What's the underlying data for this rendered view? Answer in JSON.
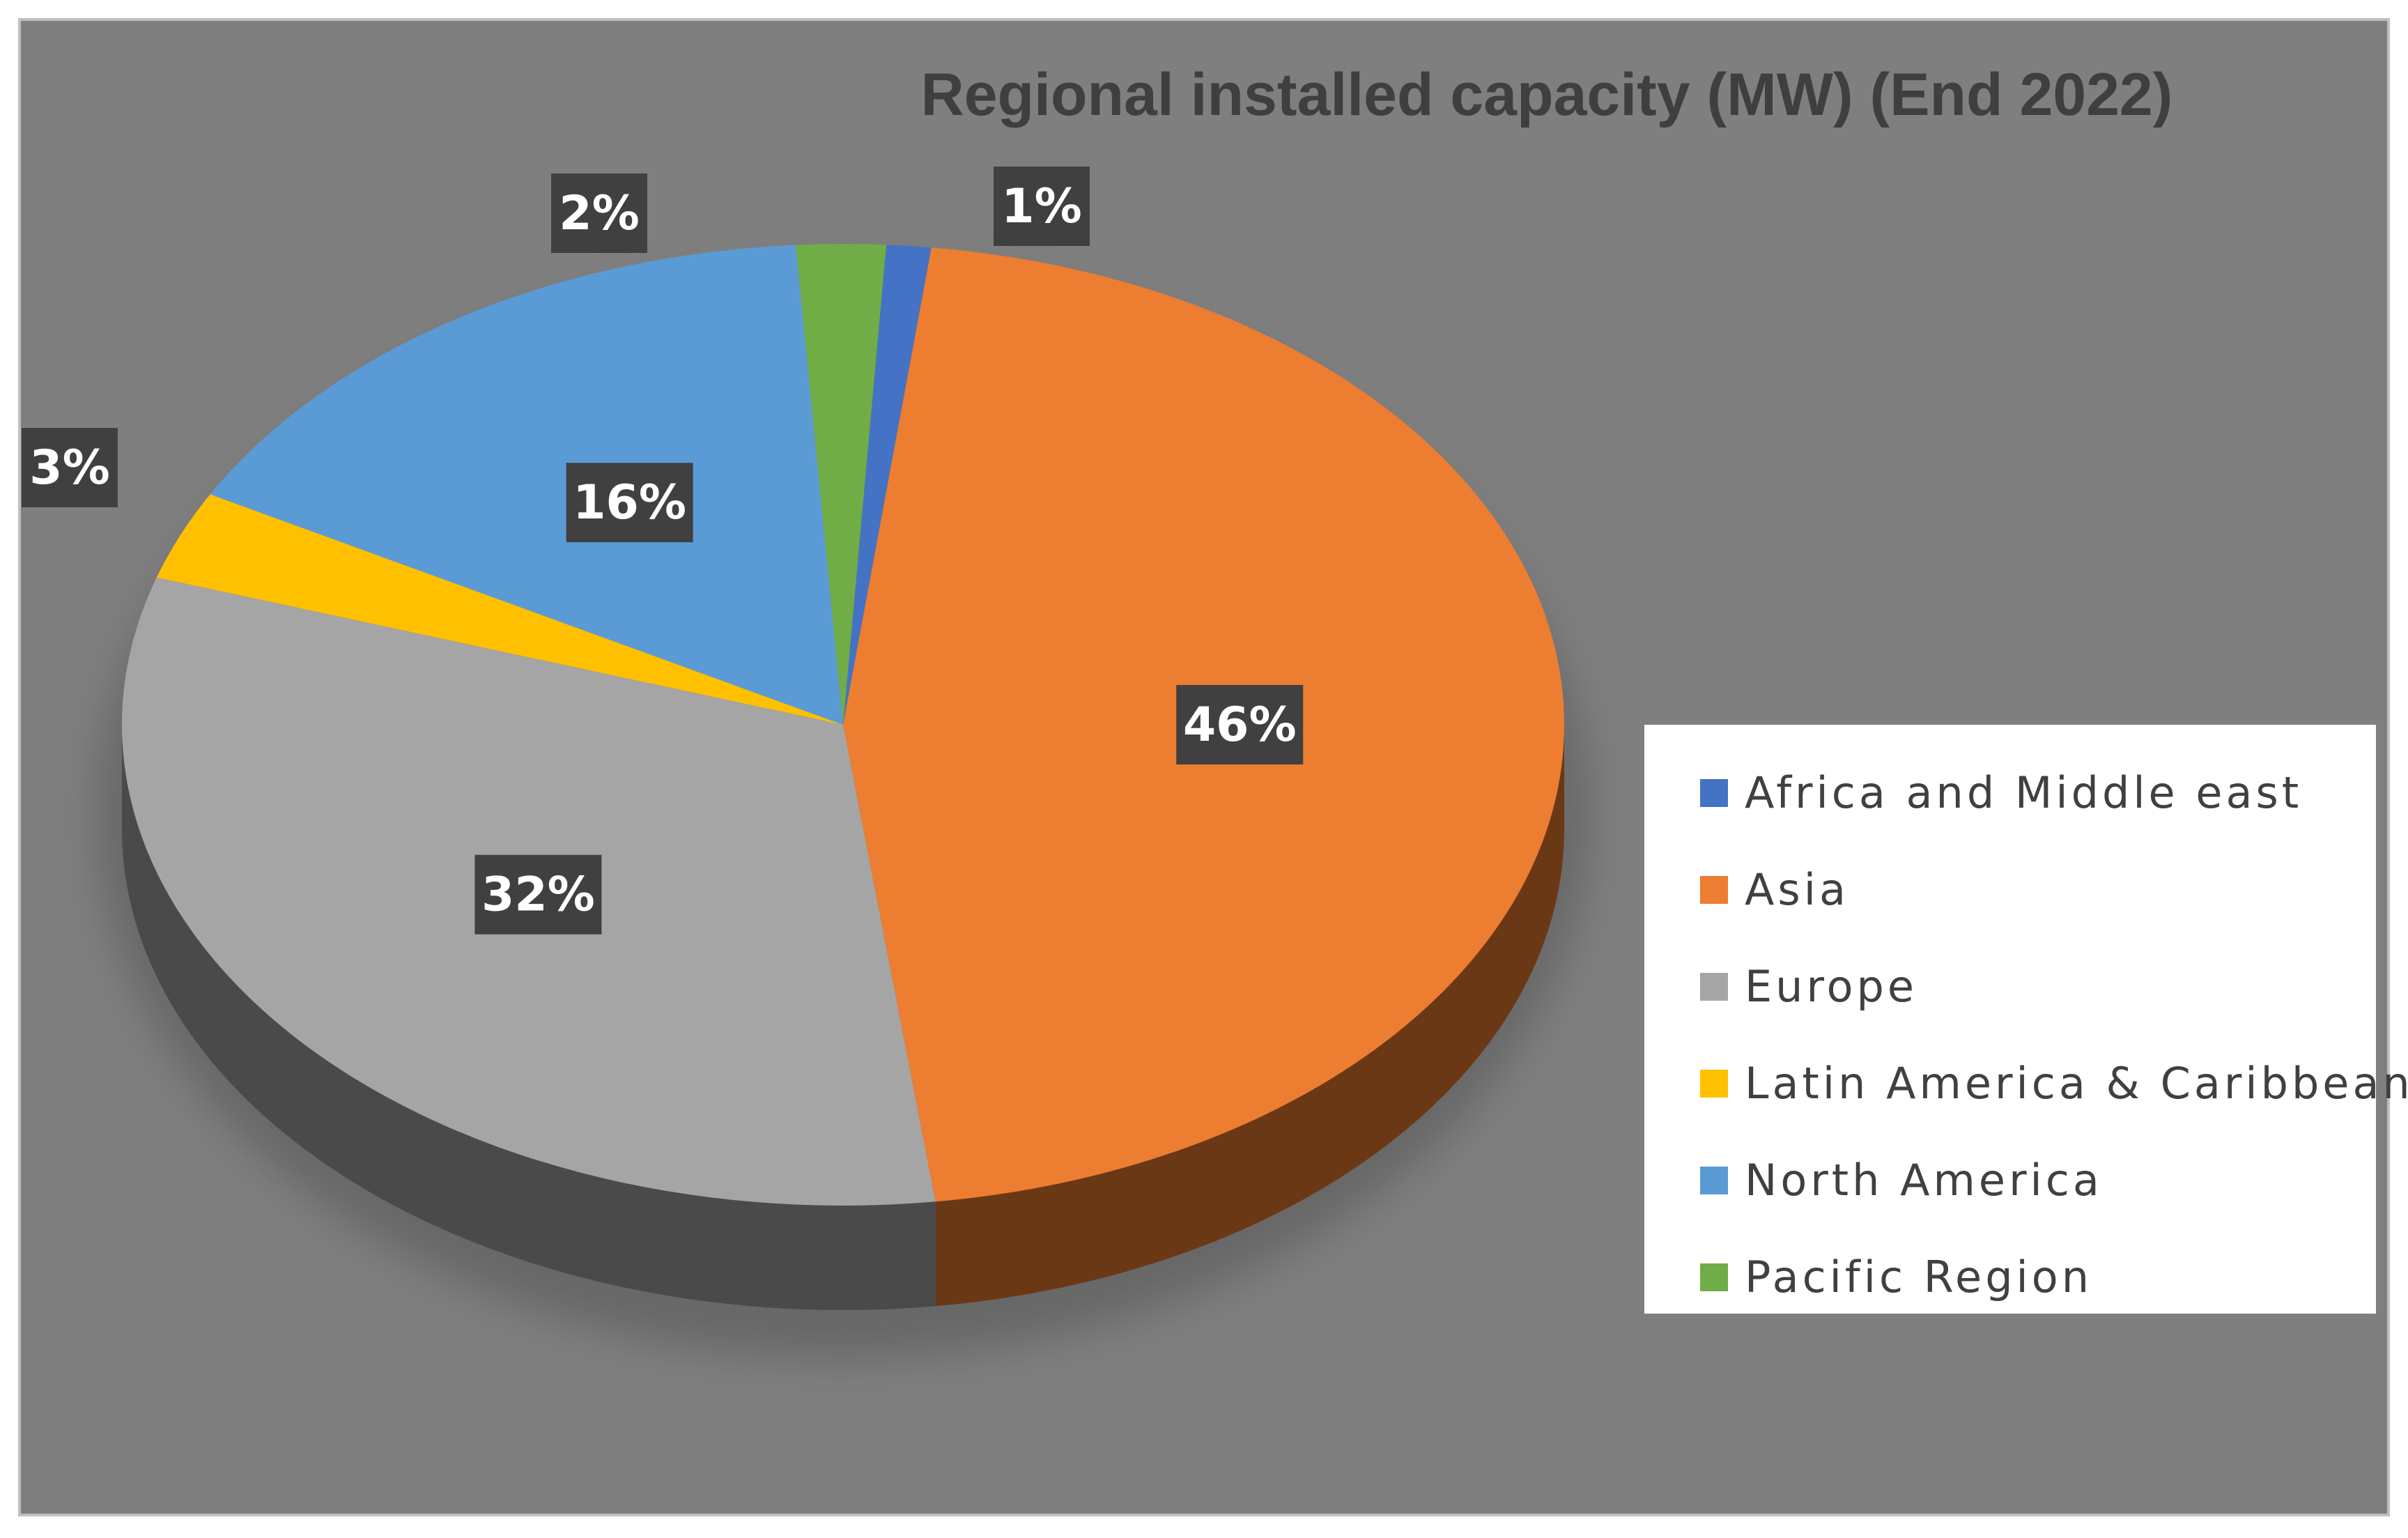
{
  "chart_data": {
    "type": "pie",
    "title": "Regional installed capacity (MW) (End 2022)",
    "legend_position": "right",
    "slices": [
      {
        "name": "Africa and  Middle east",
        "value": 1,
        "label": "1%",
        "color": "#4472c4"
      },
      {
        "name": "Asia",
        "value": 46,
        "label": "46%",
        "color": "#ed7d31"
      },
      {
        "name": "Europe",
        "value": 32,
        "label": "32%",
        "color": "#a5a5a5"
      },
      {
        "name": "Latin America & Caribbean",
        "value": 3,
        "label": "3%",
        "color": "#ffc000"
      },
      {
        "name": "North America",
        "value": 16,
        "label": "16%",
        "color": "#5b9bd5"
      },
      {
        "name": "Pacific Region",
        "value": 2,
        "label": "2%",
        "color": "#70ad47"
      }
    ]
  }
}
